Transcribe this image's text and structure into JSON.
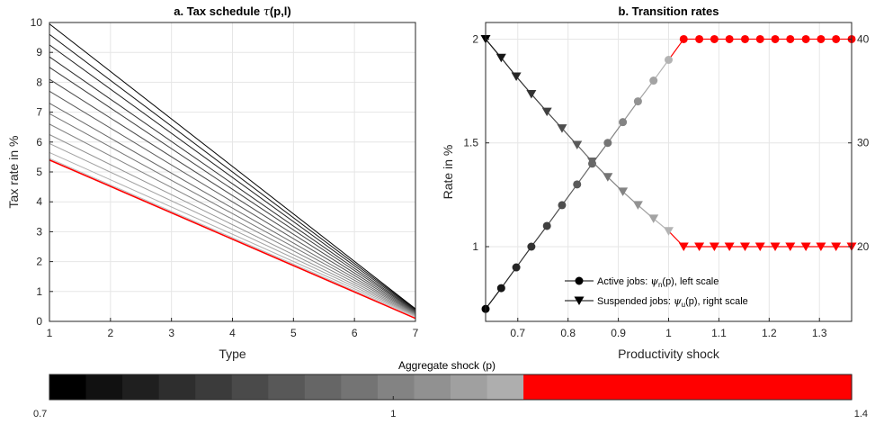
{
  "chart_data": [
    {
      "type": "line",
      "title": "a. Tax schedule τ(p,l)",
      "title_prefix": "a. Tax schedule ",
      "title_symbol": "τ",
      "title_suffix": "(p,l)",
      "xlabel": "Type",
      "ylabel": "Tax rate in %",
      "xlim": [
        1,
        7
      ],
      "ylim": [
        0,
        10
      ],
      "xticks": [
        1,
        2,
        3,
        4,
        5,
        6,
        7
      ],
      "yticks": [
        0,
        1,
        2,
        3,
        4,
        5,
        6,
        7,
        8,
        9,
        10
      ],
      "grid": true,
      "series_note_colors": "gray ramp from black (p=0.7) to light gray, red for highest shocks",
      "series": [
        {
          "p": 0.7,
          "color": "#000000",
          "x": [
            1,
            7
          ],
          "y": [
            9.95,
            0.42
          ]
        },
        {
          "p": 0.725,
          "color": "#111111",
          "x": [
            1,
            7
          ],
          "y": [
            9.6,
            0.4
          ]
        },
        {
          "p": 0.75,
          "color": "#1f1f1f",
          "x": [
            1,
            7
          ],
          "y": [
            9.25,
            0.38
          ]
        },
        {
          "p": 0.775,
          "color": "#2e2e2e",
          "x": [
            1,
            7
          ],
          "y": [
            8.85,
            0.36
          ]
        },
        {
          "p": 0.8,
          "color": "#3b3b3b",
          "x": [
            1,
            7
          ],
          "y": [
            8.5,
            0.34
          ]
        },
        {
          "p": 0.825,
          "color": "#4a4a4a",
          "x": [
            1,
            7
          ],
          "y": [
            8.1,
            0.32
          ]
        },
        {
          "p": 0.85,
          "color": "#585858",
          "x": [
            1,
            7
          ],
          "y": [
            7.7,
            0.3
          ]
        },
        {
          "p": 0.875,
          "color": "#666666",
          "x": [
            1,
            7
          ],
          "y": [
            7.3,
            0.28
          ]
        },
        {
          "p": 0.9,
          "color": "#747474",
          "x": [
            1,
            7
          ],
          "y": [
            6.95,
            0.26
          ]
        },
        {
          "p": 0.925,
          "color": "#838383",
          "x": [
            1,
            7
          ],
          "y": [
            6.6,
            0.24
          ]
        },
        {
          "p": 0.95,
          "color": "#919191",
          "x": [
            1,
            7
          ],
          "y": [
            6.25,
            0.22
          ]
        },
        {
          "p": 0.975,
          "color": "#a0a0a0",
          "x": [
            1,
            7
          ],
          "y": [
            5.95,
            0.2
          ]
        },
        {
          "p": 1.0,
          "color": "#aeaeae",
          "x": [
            1,
            7
          ],
          "y": [
            5.65,
            0.18
          ]
        },
        {
          "p": 1.025,
          "color": "#bcbcbc",
          "x": [
            1,
            7
          ],
          "y": [
            5.45,
            0.15
          ]
        },
        {
          "p": 1.05,
          "color": "#ff0000",
          "x": [
            1,
            7
          ],
          "y": [
            5.4,
            0.1
          ]
        }
      ]
    },
    {
      "type": "line",
      "title": "b. Transition rates",
      "xlabel": "Productivity shock",
      "ylabel": "Rate in %",
      "xlim": [
        0.636,
        1.364
      ],
      "ylim_left": [
        0.64,
        2.08
      ],
      "ylim_right": [
        12.8,
        41.6
      ],
      "xticks": [
        0.7,
        0.8,
        0.9,
        1.0,
        1.1,
        1.2,
        1.3
      ],
      "xtick_labels": [
        "0.7",
        "0.8",
        "0.9",
        "1",
        "1.1",
        "1.2",
        "1.3"
      ],
      "yticks_left": [
        1,
        1.5,
        2
      ],
      "yticks_left_labels": [
        "1",
        "1.5",
        "2"
      ],
      "yticks_right": [
        20,
        30,
        40
      ],
      "yticks_right_labels": [
        "20",
        "30",
        "40"
      ],
      "grid": true,
      "legend_position": "bottom-right",
      "x": [
        0.636,
        0.667,
        0.697,
        0.727,
        0.758,
        0.788,
        0.818,
        0.848,
        0.879,
        0.909,
        0.939,
        0.97,
        1.0,
        1.03,
        1.061,
        1.091,
        1.121,
        1.152,
        1.182,
        1.212,
        1.242,
        1.273,
        1.303,
        1.333,
        1.364
      ],
      "series": [
        {
          "name": "Active jobs: ψn(p), left scale",
          "legend_prefix": "Active jobs: ",
          "legend_symbol": "ψ",
          "legend_sub": "n",
          "legend_suffix": "(p), left scale",
          "marker": "circle",
          "axis": "left",
          "values": [
            0.7,
            0.8,
            0.9,
            1.0,
            1.1,
            1.2,
            1.3,
            1.4,
            1.5,
            1.6,
            1.7,
            1.8,
            1.9,
            2.0,
            2.0,
            2.0,
            2.0,
            2.0,
            2.0,
            2.0,
            2.0,
            2.0,
            2.0,
            2.0,
            2.0
          ]
        },
        {
          "name": "Suspended jobs: ψu(p), right scale",
          "legend_prefix": "Suspended jobs: ",
          "legend_symbol": "ψ",
          "legend_sub": "u",
          "legend_suffix": "(p), right scale",
          "marker": "triangle-down",
          "axis": "right",
          "values": [
            40,
            38.2,
            36.4,
            34.7,
            33.0,
            31.4,
            29.8,
            28.2,
            26.7,
            25.3,
            24.0,
            22.7,
            21.5,
            20,
            20,
            20,
            20,
            20,
            20,
            20,
            20,
            20,
            20,
            20,
            20
          ]
        }
      ]
    }
  ],
  "colorbar": {
    "label": "Aggregate shock (p)",
    "tick_labels": [
      "0.7",
      "1",
      "1.4"
    ],
    "tick_values": [
      0.7,
      1.0,
      1.4
    ],
    "range": [
      0.7,
      1.4
    ],
    "segments": [
      "#000000",
      "#111111",
      "#1f1f1f",
      "#2e2e2e",
      "#3b3b3b",
      "#4a4a4a",
      "#585858",
      "#666666",
      "#747474",
      "#838383",
      "#919191",
      "#a0a0a0",
      "#aeaeae",
      "#ff0000",
      "#ff0000",
      "#ff0000",
      "#ff0000",
      "#ff0000",
      "#ff0000",
      "#ff0000",
      "#ff0000",
      "#ff0000"
    ]
  }
}
